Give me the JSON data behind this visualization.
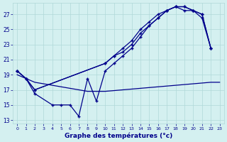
{
  "xlabel": "Graphe des températures (°c)",
  "bg_color": "#d4f0f0",
  "grid_color": "#b0d8d8",
  "line_color": "#00008b",
  "yticks": [
    13,
    15,
    17,
    19,
    21,
    23,
    25,
    27
  ],
  "ylim": [
    12.5,
    28.5
  ],
  "xlim": [
    -0.5,
    23.5
  ],
  "curve_a_x": [
    0,
    1,
    2,
    4,
    5,
    6,
    7,
    8,
    9,
    10,
    11,
    12,
    13,
    14,
    15,
    16,
    17,
    18,
    19,
    20,
    21,
    22
  ],
  "curve_a_y": [
    19.5,
    18.5,
    16.5,
    15.0,
    15.0,
    15.0,
    13.5,
    18.5,
    15.5,
    19.5,
    20.5,
    21.5,
    22.5,
    24.0,
    25.5,
    26.5,
    27.5,
    28.0,
    27.5,
    27.5,
    26.5,
    22.5
  ],
  "curve_b_x": [
    0,
    1,
    2,
    10,
    11,
    12,
    13,
    14,
    15,
    16,
    17,
    18,
    19,
    20,
    21,
    22
  ],
  "curve_b_y": [
    19.5,
    18.5,
    17.0,
    20.5,
    21.5,
    22.5,
    23.5,
    25.0,
    26.0,
    27.0,
    27.5,
    28.0,
    28.0,
    27.5,
    27.0,
    22.5
  ],
  "curve_c_x": [
    0,
    1,
    2,
    10,
    11,
    12,
    13,
    14,
    15,
    16,
    17,
    18,
    19,
    20,
    21,
    22
  ],
  "curve_c_y": [
    19.5,
    18.5,
    17.0,
    20.5,
    21.5,
    22.0,
    23.0,
    24.5,
    25.5,
    26.5,
    27.5,
    28.0,
    28.0,
    27.5,
    27.0,
    22.5
  ],
  "curve_d_x": [
    0,
    1,
    2,
    3,
    4,
    5,
    6,
    7,
    8,
    9,
    10,
    11,
    12,
    13,
    14,
    15,
    16,
    17,
    18,
    19,
    20,
    21,
    22,
    23
  ],
  "curve_d_y": [
    19.0,
    18.5,
    18.0,
    17.8,
    17.6,
    17.4,
    17.2,
    17.0,
    16.8,
    16.8,
    16.8,
    16.9,
    17.0,
    17.1,
    17.2,
    17.3,
    17.4,
    17.5,
    17.6,
    17.7,
    17.8,
    17.9,
    18.0,
    18.0
  ]
}
